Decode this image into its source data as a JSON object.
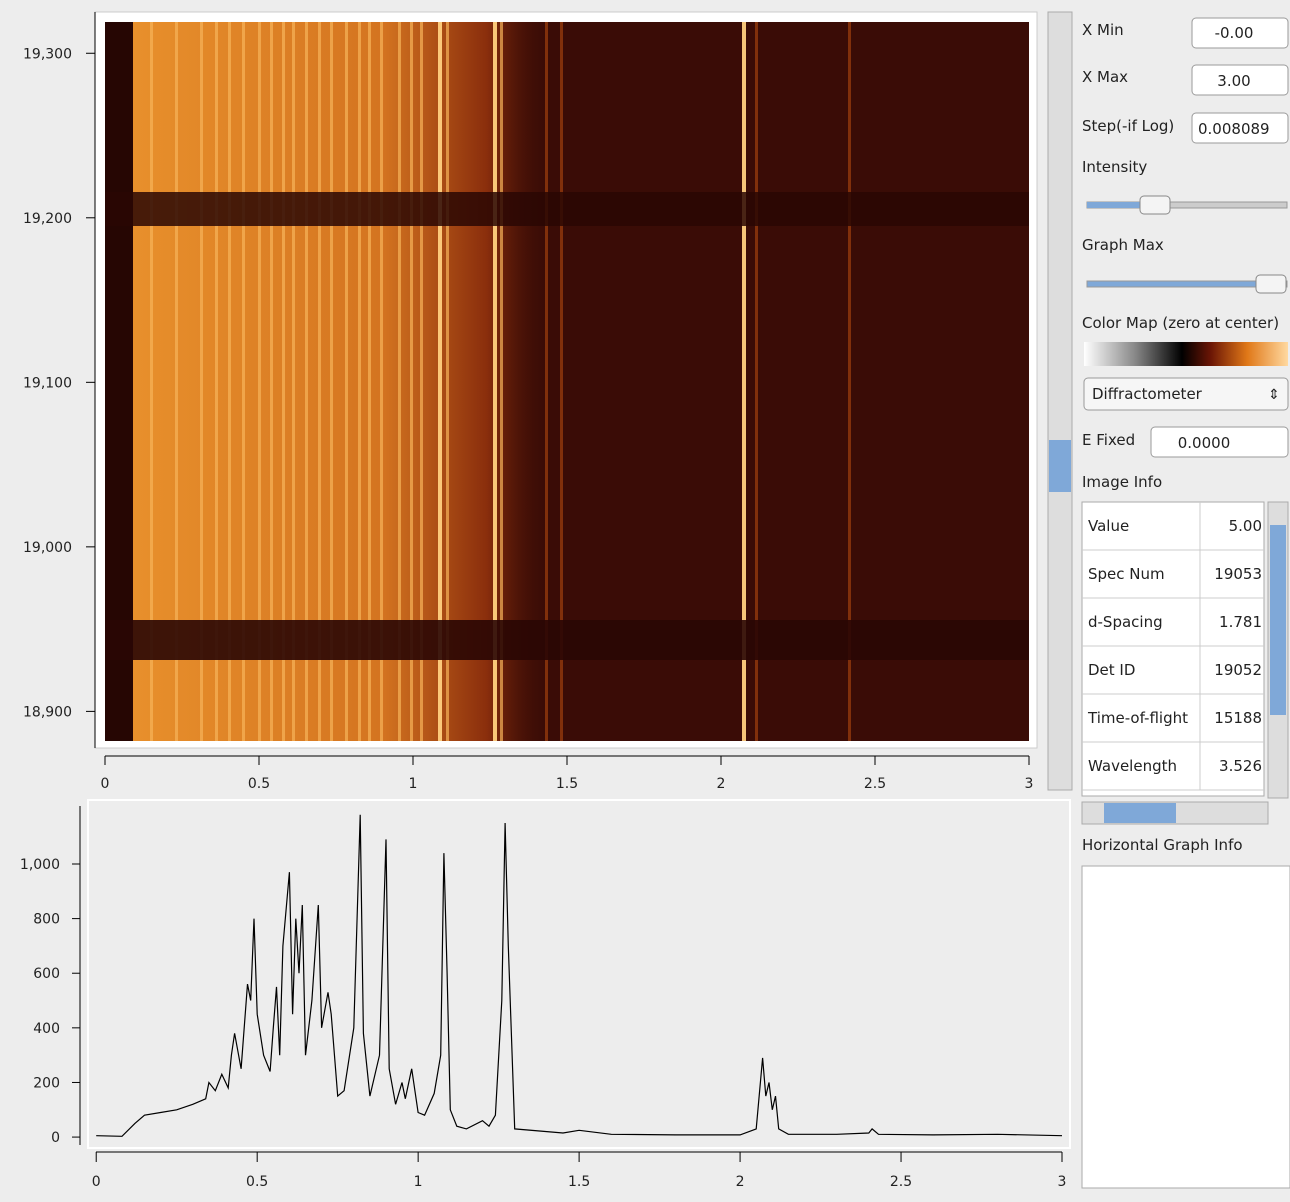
{
  "image_plot": {
    "xlim": [
      0,
      3
    ],
    "xticks": [
      0,
      0.5,
      1,
      1.5,
      2,
      2.5,
      3
    ],
    "ylim": [
      18882,
      19319
    ],
    "yticks": [
      {
        "value": 18900,
        "label": "18,900"
      },
      {
        "value": 19000,
        "label": "19,000"
      },
      {
        "value": 19100,
        "label": "19,100"
      },
      {
        "value": 19200,
        "label": "19,200"
      },
      {
        "value": 19300,
        "label": "19,300"
      }
    ]
  },
  "chart_data": {
    "type": "line",
    "color": "#000000",
    "xlim": [
      -0.01,
      3
    ],
    "xticks": [
      0,
      0.5,
      1,
      1.5,
      2,
      2.5,
      3
    ],
    "ylim": [
      -29,
      1216
    ],
    "yticks": [
      0,
      200,
      400,
      600,
      800,
      {
        "value": 1000,
        "label": "1,000"
      }
    ],
    "x": [
      0,
      0.08,
      0.12,
      0.15,
      0.2,
      0.25,
      0.3,
      0.34,
      0.35,
      0.37,
      0.39,
      0.41,
      0.42,
      0.43,
      0.45,
      0.47,
      0.48,
      0.49,
      0.5,
      0.52,
      0.54,
      0.55,
      0.56,
      0.57,
      0.58,
      0.6,
      0.61,
      0.62,
      0.63,
      0.64,
      0.65,
      0.67,
      0.69,
      0.7,
      0.72,
      0.73,
      0.75,
      0.77,
      0.8,
      0.82,
      0.83,
      0.85,
      0.88,
      0.9,
      0.91,
      0.93,
      0.95,
      0.96,
      0.98,
      1.0,
      1.02,
      1.05,
      1.07,
      1.08,
      1.09,
      1.1,
      1.12,
      1.15,
      1.2,
      1.22,
      1.24,
      1.26,
      1.27,
      1.28,
      1.3,
      1.4,
      1.45,
      1.5,
      1.6,
      1.8,
      2.0,
      2.05,
      2.07,
      2.08,
      2.09,
      2.1,
      2.11,
      2.12,
      2.15,
      2.3,
      2.4,
      2.41,
      2.43,
      2.6,
      2.8,
      3.0
    ],
    "values": [
      5,
      3,
      50,
      80,
      90,
      100,
      120,
      140,
      200,
      170,
      230,
      180,
      300,
      380,
      250,
      560,
      500,
      800,
      450,
      300,
      240,
      400,
      550,
      300,
      700,
      970,
      450,
      800,
      600,
      850,
      300,
      500,
      850,
      400,
      530,
      450,
      150,
      170,
      400,
      1180,
      380,
      150,
      300,
      1090,
      250,
      120,
      200,
      140,
      250,
      90,
      80,
      160,
      300,
      1040,
      600,
      100,
      40,
      30,
      60,
      40,
      80,
      500,
      1150,
      700,
      30,
      20,
      15,
      25,
      10,
      8,
      8,
      30,
      290,
      150,
      200,
      100,
      150,
      30,
      10,
      10,
      15,
      30,
      10,
      8,
      10,
      5
    ]
  },
  "controls": {
    "x_min_label": "X Min",
    "x_min": "-0.00",
    "x_max_label": "X Max",
    "x_max": "3.00",
    "step_label": "Step(-if Log)",
    "step": "0.008089",
    "intensity_label": "Intensity",
    "graph_max_label": "Graph Max",
    "color_map_label": "Color Map (zero at center)",
    "instrument": "Diffractometer",
    "e_fixed_label": "E Fixed",
    "e_fixed": "0.0000"
  },
  "image_info": {
    "title": "Image Info",
    "rows": [
      [
        "Value",
        "5.00"
      ],
      [
        "Spec Num",
        "19053"
      ],
      [
        "d-Spacing",
        "1.781"
      ],
      [
        "Det ID",
        "19052"
      ],
      [
        "Time-of-flight",
        "15188"
      ],
      [
        "Wavelength",
        "3.526"
      ]
    ]
  },
  "horizontal_graph_info": {
    "title": "Horizontal Graph Info"
  }
}
